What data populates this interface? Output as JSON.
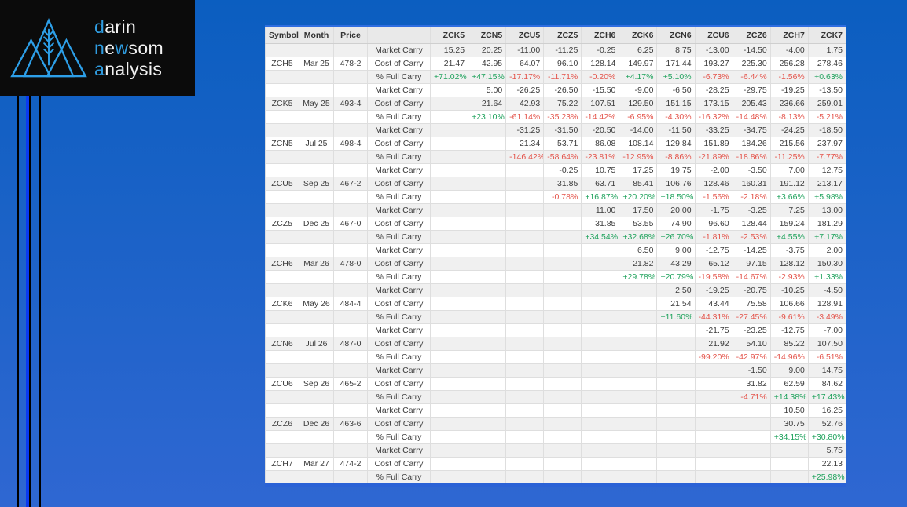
{
  "logo": {
    "lines": [
      [
        {
          "text": "d",
          "accent": true
        },
        {
          "text": "arin",
          "accent": false
        }
      ],
      [
        {
          "text": "n",
          "accent": true
        },
        {
          "text": "e",
          "accent": false
        },
        {
          "text": "w",
          "accent": true
        },
        {
          "text": "som",
          "accent": false
        }
      ],
      [
        {
          "text": "a",
          "accent": true
        },
        {
          "text": "nalysis",
          "accent": false
        }
      ]
    ],
    "icon": "mountains-wheat-icon"
  },
  "colors": {
    "background_top": "#0b5ec0",
    "background_bottom": "#2f67d2",
    "logo_accent": "#2f9ce0",
    "logo_background": "#0b0b0b",
    "table_top_border": "#2e6de0",
    "table_bottom_border": "#2a62d6",
    "positive_value": "#1fa25c",
    "negative_value": "#e4544b",
    "decorative_line_blue": "#0a3af0",
    "decorative_line_black": "#000000"
  },
  "table": {
    "headers": [
      "Symbol",
      "Month",
      "Price",
      "",
      "ZCK5",
      "ZCN5",
      "ZCU5",
      "ZCZ5",
      "ZCH6",
      "ZCK6",
      "ZCN6",
      "ZCU6",
      "ZCZ6",
      "ZCH7",
      "ZCK7"
    ],
    "row_labels": {
      "market": "Market Carry",
      "cost": "Cost of Carry",
      "pct": "% Full Carry"
    },
    "groups": [
      {
        "symbol": "ZCH5",
        "month": "Mar 25",
        "price": "478-2",
        "market": [
          "15.25",
          "20.25",
          "-11.00",
          "-11.25",
          "-0.25",
          "6.25",
          "8.75",
          "-13.00",
          "-14.50",
          "-4.00",
          "1.75"
        ],
        "cost": [
          "21.47",
          "42.95",
          "64.07",
          "96.10",
          "128.14",
          "149.97",
          "171.44",
          "193.27",
          "225.30",
          "256.28",
          "278.46"
        ],
        "pct": [
          "+71.02%",
          "+47.15%",
          "-17.17%",
          "-11.71%",
          "-0.20%",
          "+4.17%",
          "+5.10%",
          "-6.73%",
          "-6.44%",
          "-1.56%",
          "+0.63%"
        ]
      },
      {
        "symbol": "ZCK5",
        "month": "May 25",
        "price": "493-4",
        "market": [
          "",
          "5.00",
          "-26.25",
          "-26.50",
          "-15.50",
          "-9.00",
          "-6.50",
          "-28.25",
          "-29.75",
          "-19.25",
          "-13.50"
        ],
        "cost": [
          "",
          "21.64",
          "42.93",
          "75.22",
          "107.51",
          "129.50",
          "151.15",
          "173.15",
          "205.43",
          "236.66",
          "259.01"
        ],
        "pct": [
          "",
          "+23.10%",
          "-61.14%",
          "-35.23%",
          "-14.42%",
          "-6.95%",
          "-4.30%",
          "-16.32%",
          "-14.48%",
          "-8.13%",
          "-5.21%"
        ]
      },
      {
        "symbol": "ZCN5",
        "month": "Jul 25",
        "price": "498-4",
        "market": [
          "",
          "",
          "-31.25",
          "-31.50",
          "-20.50",
          "-14.00",
          "-11.50",
          "-33.25",
          "-34.75",
          "-24.25",
          "-18.50"
        ],
        "cost": [
          "",
          "",
          "21.34",
          "53.71",
          "86.08",
          "108.14",
          "129.84",
          "151.89",
          "184.26",
          "215.56",
          "237.97"
        ],
        "pct": [
          "",
          "",
          "-146.42%",
          "-58.64%",
          "-23.81%",
          "-12.95%",
          "-8.86%",
          "-21.89%",
          "-18.86%",
          "-11.25%",
          "-7.77%"
        ]
      },
      {
        "symbol": "ZCU5",
        "month": "Sep 25",
        "price": "467-2",
        "market": [
          "",
          "",
          "",
          "-0.25",
          "10.75",
          "17.25",
          "19.75",
          "-2.00",
          "-3.50",
          "7.00",
          "12.75"
        ],
        "cost": [
          "",
          "",
          "",
          "31.85",
          "63.71",
          "85.41",
          "106.76",
          "128.46",
          "160.31",
          "191.12",
          "213.17"
        ],
        "pct": [
          "",
          "",
          "",
          "-0.78%",
          "+16.87%",
          "+20.20%",
          "+18.50%",
          "-1.56%",
          "-2.18%",
          "+3.66%",
          "+5.98%"
        ]
      },
      {
        "symbol": "ZCZ5",
        "month": "Dec 25",
        "price": "467-0",
        "market": [
          "",
          "",
          "",
          "",
          "11.00",
          "17.50",
          "20.00",
          "-1.75",
          "-3.25",
          "7.25",
          "13.00"
        ],
        "cost": [
          "",
          "",
          "",
          "",
          "31.85",
          "53.55",
          "74.90",
          "96.60",
          "128.44",
          "159.24",
          "181.29"
        ],
        "pct": [
          "",
          "",
          "",
          "",
          "+34.54%",
          "+32.68%",
          "+26.70%",
          "-1.81%",
          "-2.53%",
          "+4.55%",
          "+7.17%"
        ]
      },
      {
        "symbol": "ZCH6",
        "month": "Mar 26",
        "price": "478-0",
        "market": [
          "",
          "",
          "",
          "",
          "",
          "6.50",
          "9.00",
          "-12.75",
          "-14.25",
          "-3.75",
          "2.00"
        ],
        "cost": [
          "",
          "",
          "",
          "",
          "",
          "21.82",
          "43.29",
          "65.12",
          "97.15",
          "128.12",
          "150.30"
        ],
        "pct": [
          "",
          "",
          "",
          "",
          "",
          "+29.78%",
          "+20.79%",
          "-19.58%",
          "-14.67%",
          "-2.93%",
          "+1.33%"
        ]
      },
      {
        "symbol": "ZCK6",
        "month": "May 26",
        "price": "484-4",
        "market": [
          "",
          "",
          "",
          "",
          "",
          "",
          "2.50",
          "-19.25",
          "-20.75",
          "-10.25",
          "-4.50"
        ],
        "cost": [
          "",
          "",
          "",
          "",
          "",
          "",
          "21.54",
          "43.44",
          "75.58",
          "106.66",
          "128.91"
        ],
        "pct": [
          "",
          "",
          "",
          "",
          "",
          "",
          "+11.60%",
          "-44.31%",
          "-27.45%",
          "-9.61%",
          "-3.49%"
        ]
      },
      {
        "symbol": "ZCN6",
        "month": "Jul 26",
        "price": "487-0",
        "market": [
          "",
          "",
          "",
          "",
          "",
          "",
          "",
          "-21.75",
          "-23.25",
          "-12.75",
          "-7.00"
        ],
        "cost": [
          "",
          "",
          "",
          "",
          "",
          "",
          "",
          "21.92",
          "54.10",
          "85.22",
          "107.50"
        ],
        "pct": [
          "",
          "",
          "",
          "",
          "",
          "",
          "",
          "-99.20%",
          "-42.97%",
          "-14.96%",
          "-6.51%"
        ]
      },
      {
        "symbol": "ZCU6",
        "month": "Sep 26",
        "price": "465-2",
        "market": [
          "",
          "",
          "",
          "",
          "",
          "",
          "",
          "",
          "-1.50",
          "9.00",
          "14.75"
        ],
        "cost": [
          "",
          "",
          "",
          "",
          "",
          "",
          "",
          "",
          "31.82",
          "62.59",
          "84.62"
        ],
        "pct": [
          "",
          "",
          "",
          "",
          "",
          "",
          "",
          "",
          "-4.71%",
          "+14.38%",
          "+17.43%"
        ]
      },
      {
        "symbol": "ZCZ6",
        "month": "Dec 26",
        "price": "463-6",
        "market": [
          "",
          "",
          "",
          "",
          "",
          "",
          "",
          "",
          "",
          "10.50",
          "16.25"
        ],
        "cost": [
          "",
          "",
          "",
          "",
          "",
          "",
          "",
          "",
          "",
          "30.75",
          "52.76"
        ],
        "pct": [
          "",
          "",
          "",
          "",
          "",
          "",
          "",
          "",
          "",
          "+34.15%",
          "+30.80%"
        ]
      },
      {
        "symbol": "ZCH7",
        "month": "Mar 27",
        "price": "474-2",
        "market": [
          "",
          "",
          "",
          "",
          "",
          "",
          "",
          "",
          "",
          "",
          "5.75"
        ],
        "cost": [
          "",
          "",
          "",
          "",
          "",
          "",
          "",
          "",
          "",
          "",
          "22.13"
        ],
        "pct": [
          "",
          "",
          "",
          "",
          "",
          "",
          "",
          "",
          "",
          "",
          "+25.98%"
        ]
      }
    ]
  }
}
